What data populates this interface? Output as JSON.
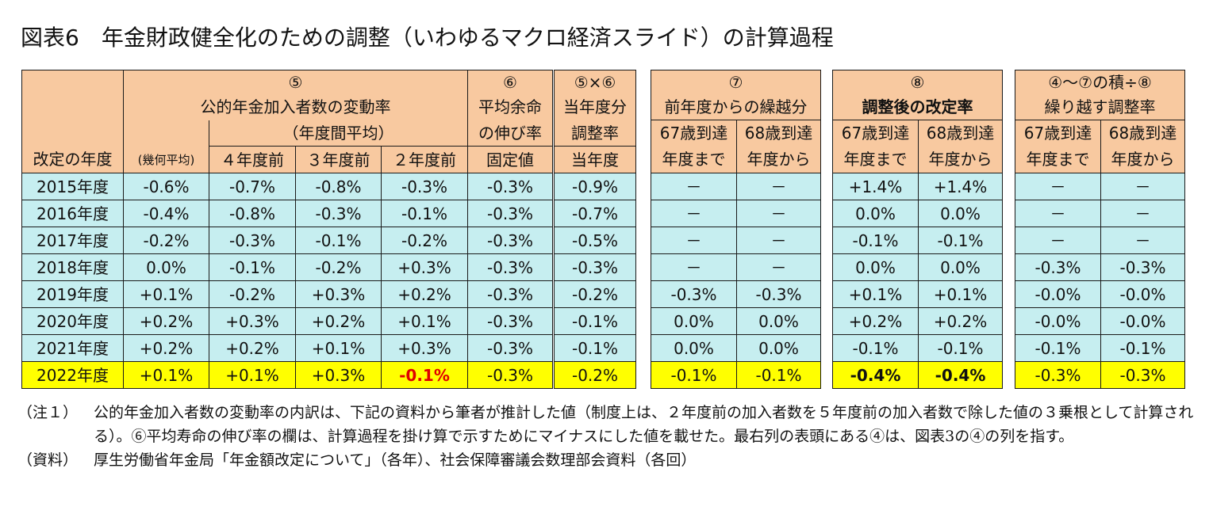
{
  "title": "図表6　年金財政健全化のための調整（いわゆるマクロ経済スライド）の計算過程",
  "header": {
    "year_col": "改定の年度",
    "col5": {
      "num": "⑤",
      "line1": "公的年金加入者数の変動率",
      "line2": "（年度間平均）",
      "sub_geo": "(幾何平均)",
      "sub4": "４年度前",
      "sub3": "３年度前",
      "sub2": "２年度前"
    },
    "col6": {
      "num": "⑥",
      "line1": "平均余命",
      "line2": "の伸び率",
      "line3": "固定値"
    },
    "col56": {
      "num": "⑤×⑥",
      "line1": "当年度分",
      "line2": "調整率",
      "line3": "当年度"
    },
    "col7": {
      "num": "⑦",
      "line1": "前年度からの繰越分",
      "sub1a": "67歳到達",
      "sub1b": "年度まで",
      "sub2a": "68歳到達",
      "sub2b": "年度から"
    },
    "col8": {
      "num": "⑧",
      "line1": "調整後の改定率",
      "sub1a": "67歳到達",
      "sub1b": "年度まで",
      "sub2a": "68歳到達",
      "sub2b": "年度から"
    },
    "col9": {
      "line0": "④～⑦の積÷⑧",
      "line1": "繰り越す調整率",
      "sub1a": "67歳到達",
      "sub1b": "年度まで",
      "sub2a": "68歳到達",
      "sub2b": "年度から"
    }
  },
  "rows": [
    {
      "year": "2015年度",
      "c5": [
        "-0.6%",
        "-0.7%",
        "-0.8%",
        "-0.3%"
      ],
      "c6": "-0.3%",
      "c56": "-0.9%",
      "c7": [
        "－",
        "－"
      ],
      "c8": [
        "+1.4%",
        "+1.4%"
      ],
      "c9": [
        "－",
        "－"
      ]
    },
    {
      "year": "2016年度",
      "c5": [
        "-0.4%",
        "-0.8%",
        "-0.3%",
        "-0.1%"
      ],
      "c6": "-0.3%",
      "c56": "-0.7%",
      "c7": [
        "－",
        "－"
      ],
      "c8": [
        "0.0%",
        "0.0%"
      ],
      "c9": [
        "－",
        "－"
      ]
    },
    {
      "year": "2017年度",
      "c5": [
        "-0.2%",
        "-0.3%",
        "-0.1%",
        "-0.2%"
      ],
      "c6": "-0.3%",
      "c56": "-0.5%",
      "c7": [
        "－",
        "－"
      ],
      "c8": [
        "-0.1%",
        "-0.1%"
      ],
      "c9": [
        "－",
        "－"
      ]
    },
    {
      "year": "2018年度",
      "c5": [
        "0.0%",
        "-0.1%",
        "-0.2%",
        "+0.3%"
      ],
      "c6": "-0.3%",
      "c56": "-0.3%",
      "c7": [
        "－",
        "－"
      ],
      "c8": [
        "0.0%",
        "0.0%"
      ],
      "c9": [
        "-0.3%",
        "-0.3%"
      ]
    },
    {
      "year": "2019年度",
      "c5": [
        "+0.1%",
        "-0.2%",
        "+0.3%",
        "+0.2%"
      ],
      "c6": "-0.3%",
      "c56": "-0.2%",
      "c7": [
        "-0.3%",
        "-0.3%"
      ],
      "c8": [
        "+0.1%",
        "+0.1%"
      ],
      "c9": [
        "-0.0%",
        "-0.0%"
      ]
    },
    {
      "year": "2020年度",
      "c5": [
        "+0.2%",
        "+0.3%",
        "+0.2%",
        "+0.1%"
      ],
      "c6": "-0.3%",
      "c56": "-0.1%",
      "c7": [
        "0.0%",
        "0.0%"
      ],
      "c8": [
        "+0.2%",
        "+0.2%"
      ],
      "c9": [
        "-0.0%",
        "-0.0%"
      ]
    },
    {
      "year": "2021年度",
      "c5": [
        "+0.2%",
        "+0.2%",
        "+0.1%",
        "+0.3%"
      ],
      "c6": "-0.3%",
      "c56": "-0.1%",
      "c7": [
        "0.0%",
        "0.0%"
      ],
      "c8": [
        "-0.1%",
        "-0.1%"
      ],
      "c9": [
        "-0.1%",
        "-0.1%"
      ]
    },
    {
      "year": "2022年度",
      "c5": [
        "+0.1%",
        "+0.1%",
        "+0.3%",
        "-0.1%"
      ],
      "c6": "-0.3%",
      "c56": "-0.2%",
      "c7": [
        "-0.1%",
        "-0.1%"
      ],
      "c8": [
        "-0.4%",
        "-0.4%"
      ],
      "c9": [
        "-0.3%",
        "-0.3%"
      ]
    }
  ],
  "colors": {
    "header_bg": "#f8c9a0",
    "data_bg": "#c6eef0",
    "highlight_bg": "#ffff00",
    "highlight_red": "#e00000"
  },
  "notes": [
    {
      "label": "（注１）",
      "text": "公的年金加入者数の変動率の内訳は、下記の資料から筆者が推計した値（制度上は、２年度前の加入者数を５年度前の加入者数で除した値の３乗根として計算される）。⑥平均寿命の伸び率の欄は、計算過程を掛け算で示すためにマイナスにした値を載せた。最右列の表頭にある④は、図表3の④の列を指す。"
    },
    {
      "label": "（資料）",
      "text": "厚生労働省年金局「年金額改定について」（各年）、社会保障審議会数理部会資料（各回）"
    }
  ]
}
